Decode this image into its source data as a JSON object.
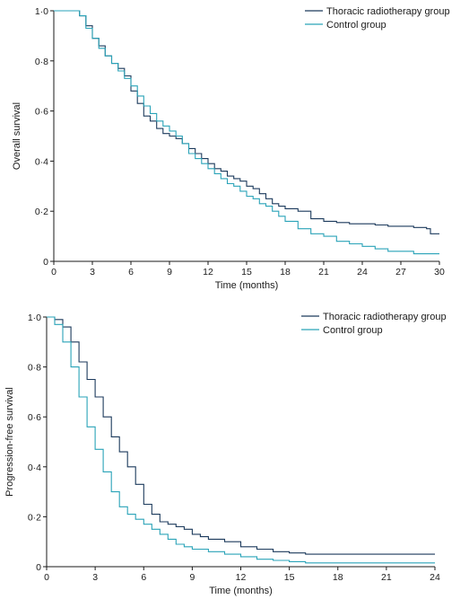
{
  "colors": {
    "radiotherapy": "#1c3a5c",
    "control": "#2aa3b8",
    "axis": "#1a1a1a"
  },
  "chart_data": [
    {
      "type": "line",
      "step": true,
      "xlabel": "Time (months)",
      "ylabel": "Overall survival",
      "xlim": [
        0,
        30
      ],
      "ylim": [
        0,
        1
      ],
      "x_ticks": [
        "0",
        "3",
        "6",
        "9",
        "12",
        "15",
        "18",
        "21",
        "24",
        "27",
        "30"
      ],
      "y_ticks": [
        "0",
        "0·2",
        "0·4",
        "0·6",
        "0·8",
        "1·0"
      ],
      "grid": false,
      "legend_position": "top-right",
      "series": [
        {
          "name": "Thoracic radiotherapy group",
          "color_key": "radiotherapy",
          "x": [
            0,
            2,
            2.5,
            3,
            3.5,
            4,
            4.5,
            5,
            5.5,
            6,
            6.5,
            7,
            7.5,
            8,
            8.5,
            9,
            9.5,
            10,
            10.5,
            11,
            11.5,
            12,
            12.5,
            13,
            13.5,
            14,
            14.5,
            15,
            15.5,
            16,
            16.5,
            17,
            17.5,
            18,
            19,
            20,
            21,
            22,
            23,
            24,
            25,
            26,
            27,
            28,
            29,
            29.3,
            30
          ],
          "y": [
            1,
            0.98,
            0.94,
            0.89,
            0.86,
            0.82,
            0.79,
            0.77,
            0.74,
            0.68,
            0.63,
            0.58,
            0.56,
            0.53,
            0.51,
            0.5,
            0.49,
            0.47,
            0.45,
            0.43,
            0.41,
            0.39,
            0.37,
            0.36,
            0.34,
            0.33,
            0.32,
            0.3,
            0.29,
            0.27,
            0.25,
            0.23,
            0.22,
            0.21,
            0.2,
            0.17,
            0.16,
            0.155,
            0.15,
            0.15,
            0.145,
            0.14,
            0.14,
            0.135,
            0.13,
            0.11,
            0.11
          ]
        },
        {
          "name": "Control group",
          "color_key": "control",
          "x": [
            0,
            2,
            2.5,
            3,
            3.5,
            4,
            4.5,
            5,
            5.5,
            6,
            6.5,
            7,
            7.5,
            8,
            8.5,
            9,
            9.5,
            10,
            10.5,
            11,
            11.5,
            12,
            12.5,
            13,
            13.5,
            14,
            14.5,
            15,
            15.5,
            16,
            16.5,
            17,
            17.5,
            18,
            19,
            20,
            21,
            22,
            23,
            24,
            25,
            26,
            27,
            28,
            29,
            30
          ],
          "y": [
            1,
            0.98,
            0.93,
            0.89,
            0.85,
            0.82,
            0.79,
            0.76,
            0.73,
            0.7,
            0.66,
            0.62,
            0.59,
            0.56,
            0.54,
            0.52,
            0.5,
            0.47,
            0.43,
            0.41,
            0.39,
            0.37,
            0.35,
            0.33,
            0.31,
            0.3,
            0.28,
            0.26,
            0.25,
            0.23,
            0.22,
            0.2,
            0.18,
            0.16,
            0.13,
            0.11,
            0.1,
            0.08,
            0.07,
            0.06,
            0.05,
            0.04,
            0.04,
            0.03,
            0.03,
            0.03
          ]
        }
      ]
    },
    {
      "type": "line",
      "step": true,
      "xlabel": "Time (months)",
      "ylabel": "Progression-free survival",
      "xlim": [
        0,
        24
      ],
      "ylim": [
        0,
        1
      ],
      "x_ticks": [
        "0",
        "3",
        "6",
        "9",
        "12",
        "15",
        "18",
        "21",
        "24"
      ],
      "y_ticks": [
        "0",
        "0·2",
        "0·4",
        "0·6",
        "0·8",
        "1·0"
      ],
      "grid": false,
      "legend_position": "top-right",
      "series": [
        {
          "name": "Thoracic radiotherapy group",
          "color_key": "radiotherapy",
          "x": [
            0,
            0.5,
            1,
            1.5,
            2,
            2.5,
            3,
            3.5,
            4,
            4.5,
            5,
            5.5,
            6,
            6.5,
            7,
            7.5,
            8,
            8.5,
            9,
            9.5,
            10,
            11,
            12,
            13,
            14,
            15,
            16,
            17,
            18,
            19,
            20,
            21,
            22,
            23,
            24
          ],
          "y": [
            1,
            0.99,
            0.96,
            0.9,
            0.82,
            0.75,
            0.68,
            0.6,
            0.52,
            0.46,
            0.4,
            0.33,
            0.25,
            0.21,
            0.18,
            0.17,
            0.16,
            0.15,
            0.13,
            0.12,
            0.11,
            0.1,
            0.08,
            0.07,
            0.06,
            0.055,
            0.05,
            0.05,
            0.05,
            0.05,
            0.05,
            0.05,
            0.05,
            0.05,
            0.05
          ]
        },
        {
          "name": "Control group",
          "color_key": "control",
          "x": [
            0,
            0.5,
            1,
            1.5,
            2,
            2.5,
            3,
            3.5,
            4,
            4.5,
            5,
            5.5,
            6,
            6.5,
            7,
            7.5,
            8,
            8.5,
            9,
            10,
            11,
            12,
            13,
            14,
            15,
            16,
            17,
            18,
            19,
            20,
            21,
            22,
            23,
            24
          ],
          "y": [
            1,
            0.97,
            0.9,
            0.8,
            0.68,
            0.56,
            0.47,
            0.38,
            0.3,
            0.24,
            0.21,
            0.19,
            0.17,
            0.15,
            0.13,
            0.11,
            0.09,
            0.08,
            0.07,
            0.06,
            0.05,
            0.04,
            0.03,
            0.025,
            0.02,
            0.015,
            0.015,
            0.015,
            0.015,
            0.015,
            0.015,
            0.015,
            0.015,
            0.015
          ]
        }
      ]
    }
  ]
}
